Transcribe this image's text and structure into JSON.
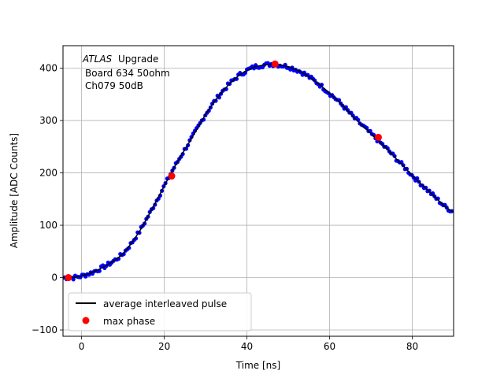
{
  "chart_data": {
    "type": "scatter",
    "title": "",
    "xlabel": "Time [ns]",
    "ylabel": "Amplitude [ADC Counts]",
    "xlim": [
      -4.5,
      90
    ],
    "ylim": [
      -112,
      443
    ],
    "xticks": [
      0,
      20,
      40,
      60,
      80
    ],
    "yticks": [
      -100,
      0,
      100,
      200,
      300,
      400
    ],
    "grid": true,
    "annotation": {
      "experiment": "ATLAS",
      "label": "Upgrade",
      "board": "Board 634 50ohm",
      "channel": "Ch079 50dB"
    },
    "legend": {
      "placement": "lower-left",
      "entries": [
        "average interleaved pulse",
        "max phase"
      ]
    },
    "colors": {
      "samples": "#0000ff",
      "average": "#000000",
      "max_phase": "#ff0000"
    },
    "series": [
      {
        "name": "average interleaved pulse",
        "x": [
          -4.5,
          -2,
          0,
          2,
          4,
          6,
          8,
          10,
          12,
          14,
          16,
          18,
          20,
          22,
          24,
          26,
          28,
          30,
          32,
          34,
          36,
          38,
          40,
          42,
          44,
          46,
          48,
          50,
          52,
          54,
          56,
          58,
          60,
          62,
          64,
          66,
          68,
          70,
          72,
          74,
          76,
          78,
          80,
          82,
          84,
          86,
          88,
          90
        ],
        "y": [
          0,
          0,
          3,
          8,
          15,
          23,
          33,
          45,
          65,
          88,
          116,
          145,
          175,
          205,
          232,
          258,
          285,
          312,
          335,
          355,
          372,
          386,
          396,
          403,
          406,
          408,
          406,
          403,
          397,
          389,
          378,
          366,
          352,
          338,
          322,
          305,
          290,
          275,
          260,
          245,
          228,
          212,
          195,
          180,
          165,
          150,
          135,
          125
        ]
      },
      {
        "name": "max phase",
        "x": [
          -3.2,
          21.8,
          46.8,
          71.8
        ],
        "y": [
          0,
          194,
          408,
          268
        ]
      }
    ]
  }
}
